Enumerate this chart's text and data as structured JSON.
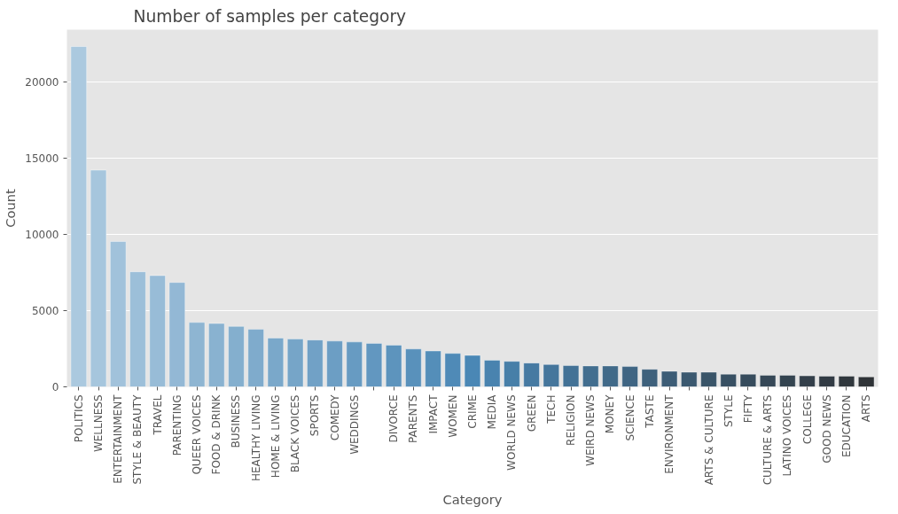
{
  "chart_data": {
    "type": "bar",
    "title": "Number of samples per category",
    "xlabel": "Category",
    "ylabel": "Count",
    "categories": [
      "POLITICS",
      "WELLNESS",
      "ENTERTAINMENT",
      "STYLE & BEAUTY",
      "TRAVEL",
      "PARENTING",
      "QUEER VOICES",
      "FOOD & DRINK",
      "BUSINESS",
      "HEALTHY LIVING",
      "HOME & LIVING",
      "BLACK VOICES",
      "SPORTS",
      "COMEDY",
      "WEDDINGS",
      null,
      "DIVORCE",
      "PARENTS",
      "IMPACT",
      "WOMEN",
      "CRIME",
      "MEDIA",
      "WORLD NEWS",
      "GREEN",
      "TECH",
      "RELIGION",
      "WEIRD NEWS",
      "MONEY",
      "SCIENCE",
      "TASTE",
      "ENVIRONMENT",
      null,
      "ARTS & CULTURE",
      "STYLE",
      "FIFTY",
      "CULTURE & ARTS",
      "LATINO VOICES",
      "COLLEGE",
      "GOOD NEWS",
      "EDUCATION",
      "ARTS"
    ],
    "values": [
      22300,
      14200,
      9520,
      7540,
      7290,
      6840,
      4220,
      4150,
      3960,
      3770,
      3200,
      3130,
      3070,
      3000,
      2940,
      2850,
      2730,
      2480,
      2350,
      2190,
      2060,
      1740,
      1670,
      1560,
      1460,
      1390,
      1370,
      1370,
      1330,
      1150,
      1020,
      960,
      960,
      830,
      830,
      760,
      760,
      720,
      700,
      700,
      650
    ],
    "colors": [
      "#abc9df",
      "#a6c6dd",
      "#a1c2db",
      "#9cbfd9",
      "#98bcd7",
      "#93b8d5",
      "#8eb5d2",
      "#89b2d0",
      "#84afce",
      "#7fabcc",
      "#7aa8ca",
      "#76a5c8",
      "#71a1c6",
      "#6c9ec4",
      "#679bc2",
      "#6297c0",
      "#5d94bd",
      "#5991bb",
      "#548eb9",
      "#4f8ab7",
      "#4a87b5",
      "#4983af",
      "#477fa8",
      "#467aa2",
      "#45769c",
      "#437296",
      "#426e8f",
      "#416a89",
      "#3f6583",
      "#3e617c",
      "#3d5d76",
      "#3b5970",
      "#3a5569",
      "#385063",
      "#374c5d",
      "#364857",
      "#344450",
      "#333f4a",
      "#323b44",
      "#30373d",
      "#2f3337"
    ],
    "ylim": [
      0,
      23400
    ],
    "yticks": [
      0,
      5000,
      10000,
      15000,
      20000
    ],
    "grid": "y"
  }
}
